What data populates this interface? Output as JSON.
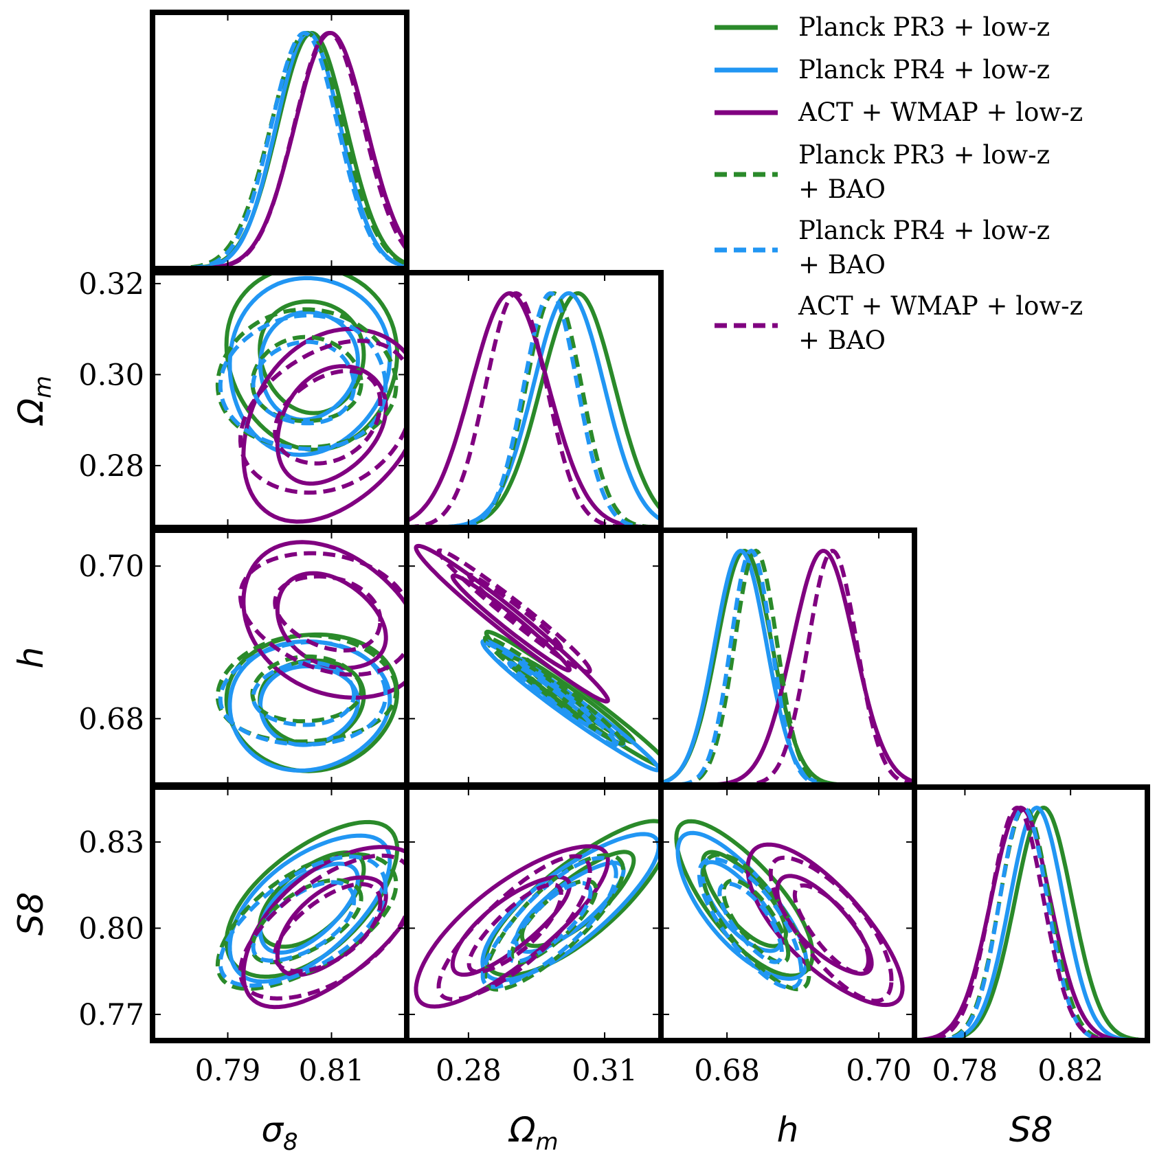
{
  "chart_data": {
    "type": "triangle",
    "title": "",
    "parameters": [
      {
        "key": "sigma8",
        "label": "σ",
        "sub": "8",
        "range": [
          0.7755,
          0.8245
        ],
        "ticks": [
          0.79,
          0.81
        ],
        "tick_labels": [
          "0.79",
          "0.81"
        ]
      },
      {
        "key": "omegam",
        "label": "Ω",
        "sub": "m",
        "range": [
          0.2664,
          0.3224
        ],
        "ticks": [
          0.28,
          0.3,
          0.32
        ],
        "tick_labels": [
          "0.28",
          "0.30",
          "0.32"
        ],
        "xticks": [
          0.28,
          0.31
        ],
        "xtick_labels": [
          "0.28",
          "0.31"
        ]
      },
      {
        "key": "h",
        "label": "h",
        "sub": "",
        "range": [
          0.6713,
          0.7047
        ],
        "ticks": [
          0.68,
          0.7
        ],
        "tick_labels": [
          "0.68",
          "0.70"
        ]
      },
      {
        "key": "S8",
        "label": "S8",
        "sub": "",
        "range": [
          0.7609,
          0.8491
        ],
        "ticks": [
          0.77,
          0.8,
          0.83
        ],
        "tick_labels": [
          "0.77",
          "0.80",
          "0.83"
        ],
        "xticks": [
          0.78,
          0.82
        ],
        "xtick_labels": [
          "0.78",
          "0.82"
        ]
      }
    ],
    "series": [
      {
        "name": "Planck PR3 + low-z",
        "legend_lines": [
          "Planck PR3 + low-z"
        ],
        "color": "#2a8a2a",
        "dashed": false,
        "mean": {
          "sigma8": 0.8062,
          "omegam": 0.3041,
          "h": 0.6823,
          "S8": 0.8098
        },
        "sd": {
          "sigma8": 0.0066,
          "omegam": 0.0081,
          "h": 0.0036,
          "S8": 0.0108
        }
      },
      {
        "name": "Planck PR4 + low-z",
        "legend_lines": [
          "Planck PR4 + low-z"
        ],
        "color": "#2196f3",
        "dashed": false,
        "mean": {
          "sigma8": 0.8055,
          "omegam": 0.3021,
          "h": 0.6818,
          "S8": 0.8072
        },
        "sd": {
          "sigma8": 0.0062,
          "omegam": 0.0078,
          "h": 0.0034,
          "S8": 0.0102
        }
      },
      {
        "name": "ACT + WMAP + low-z",
        "legend_lines": [
          "ACT + WMAP + low-z"
        ],
        "color": "#800080",
        "dashed": false,
        "mean": {
          "sigma8": 0.8098,
          "omegam": 0.2891,
          "h": 0.6927,
          "S8": 0.8011
        },
        "sd": {
          "sigma8": 0.0069,
          "omegam": 0.0085,
          "h": 0.0041,
          "S8": 0.0112
        }
      },
      {
        "name": "Planck PR3 + low-z + BAO",
        "legend_lines": [
          "Planck PR3 + low-z",
          " + BAO"
        ],
        "color": "#2a8a2a",
        "dashed": true,
        "mean": {
          "sigma8": 0.8052,
          "omegam": 0.2988,
          "h": 0.6838,
          "S8": 0.8026
        },
        "sd": {
          "sigma8": 0.0069,
          "omegam": 0.0061,
          "h": 0.0028,
          "S8": 0.0094
        }
      },
      {
        "name": "Planck PR4 + low-z + BAO",
        "legend_lines": [
          "Planck PR4 + low-z",
          " + BAO"
        ],
        "color": "#2196f3",
        "dashed": true,
        "mean": {
          "sigma8": 0.8048,
          "omegam": 0.2981,
          "h": 0.6832,
          "S8": 0.8022
        },
        "sd": {
          "sigma8": 0.0064,
          "omegam": 0.0059,
          "h": 0.0027,
          "S8": 0.009
        }
      },
      {
        "name": "ACT + WMAP + low-z + BAO",
        "legend_lines": [
          "ACT + WMAP + low-z",
          " + BAO"
        ],
        "color": "#800080",
        "dashed": true,
        "mean": {
          "sigma8": 0.8095,
          "omegam": 0.2905,
          "h": 0.6939,
          "S8": 0.7998
        },
        "sd": {
          "sigma8": 0.0067,
          "omegam": 0.0067,
          "h": 0.0032,
          "S8": 0.01
        }
      }
    ],
    "correlations": {
      "omegam|sigma8": [
        -0.05,
        0.05,
        0.3,
        0.0,
        0.0,
        0.3
      ],
      "h|sigma8": [
        0.05,
        0.05,
        -0.3,
        0.05,
        0.05,
        -0.25
      ],
      "h|omegam": [
        -0.98,
        -0.98,
        -0.98,
        -0.98,
        -0.98,
        -0.98
      ],
      "S8|sigma8": [
        0.6,
        0.6,
        0.6,
        0.6,
        0.6,
        0.6
      ],
      "S8|omegam": [
        0.8,
        0.8,
        0.8,
        0.8,
        0.8,
        0.8
      ],
      "S8|h": [
        -0.75,
        -0.75,
        -0.75,
        -0.75,
        -0.75,
        -0.75
      ]
    },
    "contour_levels": [
      "68%",
      "95%"
    ],
    "grid": false,
    "legend_position": "top-right"
  }
}
